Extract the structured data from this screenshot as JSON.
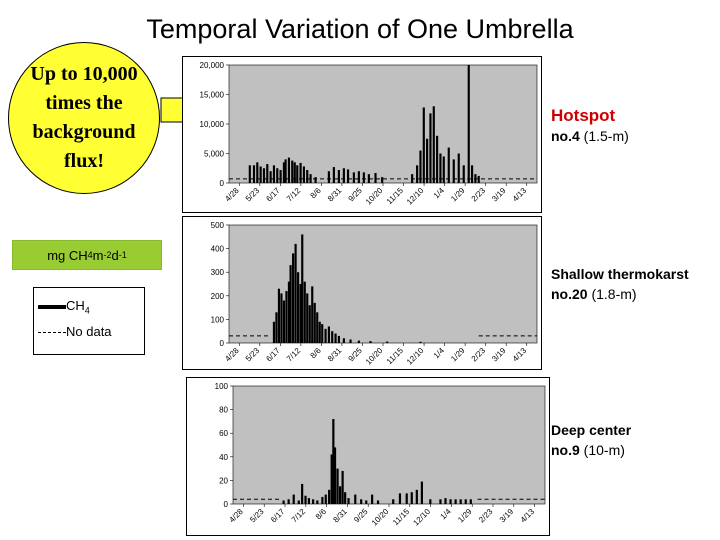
{
  "page": {
    "title": "Temporal Variation of One Umbrella"
  },
  "callout": {
    "text": "Up to 10,000\ntimes the\nbackground\nflux!"
  },
  "units_label": {
    "prefix": "mg CH",
    "sub": "4",
    "m": " m",
    "m_exp": "-2",
    "d": " d",
    "d_exp": "-1"
  },
  "legend": {
    "ch4_label": "CH",
    "ch4_sub": "4",
    "nodata_label": "No data"
  },
  "labels": {
    "hotspot": {
      "name": "Hotspot",
      "id": "no.4",
      "depth": "(1.5-m)"
    },
    "shallow": {
      "name": "Shallow thermokarst",
      "id": "no.20",
      "depth": "(1.8-m)"
    },
    "deep": {
      "name": "Deep center",
      "id": "no.9",
      "depth": "(10-m)"
    }
  },
  "colors": {
    "plot_bg": "#c0c0c0",
    "bar": "#000000",
    "callout": "#ffff33",
    "units_bg": "#99cc33",
    "hotspot_text": "#cc0000"
  },
  "chart_data": [
    {
      "type": "bar",
      "title": "Hotspot no.4 (1.5-m)",
      "x_tick_labels": [
        "4/28",
        "5/23",
        "6/17",
        "7/12",
        "8/6",
        "8/31",
        "9/25",
        "10/20",
        "11/15",
        "12/10",
        "1/4",
        "1/29",
        "2/23",
        "3/19",
        "4/13"
      ],
      "x_range_days": [
        0,
        370
      ],
      "ylim": [
        0,
        20000
      ],
      "y_ticks": [
        0,
        5000,
        10000,
        15000,
        20000
      ],
      "y_tick_labels": [
        "0",
        "5,000",
        "10,000",
        "15,000",
        "20,000"
      ],
      "no_data_level": 700,
      "bars": [
        {
          "day": 25,
          "value": 3000
        },
        {
          "day": 30,
          "value": 3000
        },
        {
          "day": 34,
          "value": 3500
        },
        {
          "day": 38,
          "value": 2800
        },
        {
          "day": 42,
          "value": 2500
        },
        {
          "day": 46,
          "value": 3200
        },
        {
          "day": 50,
          "value": 2000
        },
        {
          "day": 54,
          "value": 3000
        },
        {
          "day": 58,
          "value": 2500
        },
        {
          "day": 62,
          "value": 2200
        },
        {
          "day": 66,
          "value": 3500
        },
        {
          "day": 68,
          "value": 4000
        },
        {
          "day": 72,
          "value": 4300
        },
        {
          "day": 76,
          "value": 3800
        },
        {
          "day": 79,
          "value": 3500
        },
        {
          "day": 82,
          "value": 3000
        },
        {
          "day": 86,
          "value": 3400
        },
        {
          "day": 90,
          "value": 2800
        },
        {
          "day": 94,
          "value": 2200
        },
        {
          "day": 98,
          "value": 1500
        },
        {
          "day": 104,
          "value": 1000
        },
        {
          "day": 120,
          "value": 2000
        },
        {
          "day": 126,
          "value": 2700
        },
        {
          "day": 132,
          "value": 2200
        },
        {
          "day": 138,
          "value": 2500
        },
        {
          "day": 143,
          "value": 2300
        },
        {
          "day": 150,
          "value": 1800
        },
        {
          "day": 156,
          "value": 2000
        },
        {
          "day": 162,
          "value": 1800
        },
        {
          "day": 168,
          "value": 1500
        },
        {
          "day": 176,
          "value": 1700
        },
        {
          "day": 184,
          "value": 1000
        },
        {
          "day": 220,
          "value": 1500
        },
        {
          "day": 226,
          "value": 3000
        },
        {
          "day": 230,
          "value": 5500
        },
        {
          "day": 234,
          "value": 12800
        },
        {
          "day": 238,
          "value": 7500
        },
        {
          "day": 242,
          "value": 11800
        },
        {
          "day": 246,
          "value": 13000
        },
        {
          "day": 250,
          "value": 8000
        },
        {
          "day": 254,
          "value": 5000
        },
        {
          "day": 258,
          "value": 4500
        },
        {
          "day": 264,
          "value": 6000
        },
        {
          "day": 270,
          "value": 4000
        },
        {
          "day": 276,
          "value": 5000
        },
        {
          "day": 282,
          "value": 3000
        },
        {
          "day": 288,
          "value": 20000
        },
        {
          "day": 292,
          "value": 3000
        },
        {
          "day": 296,
          "value": 1500
        },
        {
          "day": 300,
          "value": 1200
        }
      ]
    },
    {
      "type": "bar",
      "title": "Shallow thermokarst no.20 (1.8-m)",
      "x_tick_labels": [
        "4/28",
        "5/23",
        "6/17",
        "7/12",
        "8/6",
        "8/31",
        "9/25",
        "10/20",
        "11/15",
        "12/10",
        "1/4",
        "1/29",
        "2/23",
        "3/19",
        "4/13"
      ],
      "x_range_days": [
        0,
        370
      ],
      "ylim": [
        0,
        500
      ],
      "y_ticks": [
        0,
        100,
        200,
        300,
        400,
        500
      ],
      "y_tick_labels": [
        "0",
        "100",
        "200",
        "300",
        "400",
        "500"
      ],
      "no_data_segments": [
        [
          0,
          50,
          30
        ],
        [
          300,
          370,
          30
        ]
      ],
      "bars": [
        {
          "day": 54,
          "value": 90
        },
        {
          "day": 57,
          "value": 130
        },
        {
          "day": 60,
          "value": 230
        },
        {
          "day": 63,
          "value": 210
        },
        {
          "day": 66,
          "value": 180
        },
        {
          "day": 69,
          "value": 220
        },
        {
          "day": 72,
          "value": 260
        },
        {
          "day": 74,
          "value": 330
        },
        {
          "day": 77,
          "value": 380
        },
        {
          "day": 80,
          "value": 420
        },
        {
          "day": 83,
          "value": 300
        },
        {
          "day": 86,
          "value": 250
        },
        {
          "day": 88,
          "value": 460
        },
        {
          "day": 91,
          "value": 260
        },
        {
          "day": 94,
          "value": 210
        },
        {
          "day": 97,
          "value": 160
        },
        {
          "day": 100,
          "value": 240
        },
        {
          "day": 103,
          "value": 170
        },
        {
          "day": 106,
          "value": 130
        },
        {
          "day": 109,
          "value": 90
        },
        {
          "day": 112,
          "value": 80
        },
        {
          "day": 116,
          "value": 60
        },
        {
          "day": 120,
          "value": 70
        },
        {
          "day": 124,
          "value": 50
        },
        {
          "day": 128,
          "value": 40
        },
        {
          "day": 132,
          "value": 30
        },
        {
          "day": 138,
          "value": 20
        },
        {
          "day": 146,
          "value": 15
        },
        {
          "day": 156,
          "value": 10
        },
        {
          "day": 170,
          "value": 8
        },
        {
          "day": 190,
          "value": 6
        },
        {
          "day": 230,
          "value": 5
        }
      ]
    },
    {
      "type": "bar",
      "title": "Deep center no.9 (10-m)",
      "x_tick_labels": [
        "4/28",
        "5/23",
        "6/17",
        "7/12",
        "8/6",
        "8/31",
        "9/25",
        "10/20",
        "11/15",
        "12/10",
        "1/4",
        "1/29",
        "2/23",
        "3/19",
        "4/13"
      ],
      "x_range_days": [
        0,
        370
      ],
      "ylim": [
        0,
        100
      ],
      "y_ticks": [
        0,
        20,
        40,
        60,
        80,
        100
      ],
      "y_tick_labels": [
        "0",
        "20",
        "40",
        "60",
        "80",
        "100"
      ],
      "no_data_segments": [
        [
          0,
          55,
          4
        ],
        [
          290,
          370,
          4
        ]
      ],
      "bars": [
        {
          "day": 60,
          "value": 3
        },
        {
          "day": 66,
          "value": 4
        },
        {
          "day": 72,
          "value": 8
        },
        {
          "day": 78,
          "value": 3
        },
        {
          "day": 82,
          "value": 17
        },
        {
          "day": 86,
          "value": 7
        },
        {
          "day": 90,
          "value": 5
        },
        {
          "day": 95,
          "value": 4
        },
        {
          "day": 100,
          "value": 3
        },
        {
          "day": 106,
          "value": 6
        },
        {
          "day": 110,
          "value": 8
        },
        {
          "day": 114,
          "value": 12
        },
        {
          "day": 117,
          "value": 42
        },
        {
          "day": 119,
          "value": 72
        },
        {
          "day": 121,
          "value": 48
        },
        {
          "day": 124,
          "value": 30
        },
        {
          "day": 127,
          "value": 15
        },
        {
          "day": 130,
          "value": 28
        },
        {
          "day": 133,
          "value": 10
        },
        {
          "day": 137,
          "value": 5
        },
        {
          "day": 145,
          "value": 8
        },
        {
          "day": 152,
          "value": 4
        },
        {
          "day": 158,
          "value": 3
        },
        {
          "day": 165,
          "value": 8
        },
        {
          "day": 172,
          "value": 3
        },
        {
          "day": 190,
          "value": 4
        },
        {
          "day": 198,
          "value": 9
        },
        {
          "day": 206,
          "value": 9
        },
        {
          "day": 212,
          "value": 10
        },
        {
          "day": 218,
          "value": 12
        },
        {
          "day": 224,
          "value": 19
        },
        {
          "day": 234,
          "value": 4
        },
        {
          "day": 246,
          "value": 4
        },
        {
          "day": 252,
          "value": 5
        },
        {
          "day": 258,
          "value": 4
        },
        {
          "day": 264,
          "value": 4
        },
        {
          "day": 270,
          "value": 4
        },
        {
          "day": 276,
          "value": 4
        },
        {
          "day": 282,
          "value": 4
        }
      ]
    }
  ]
}
